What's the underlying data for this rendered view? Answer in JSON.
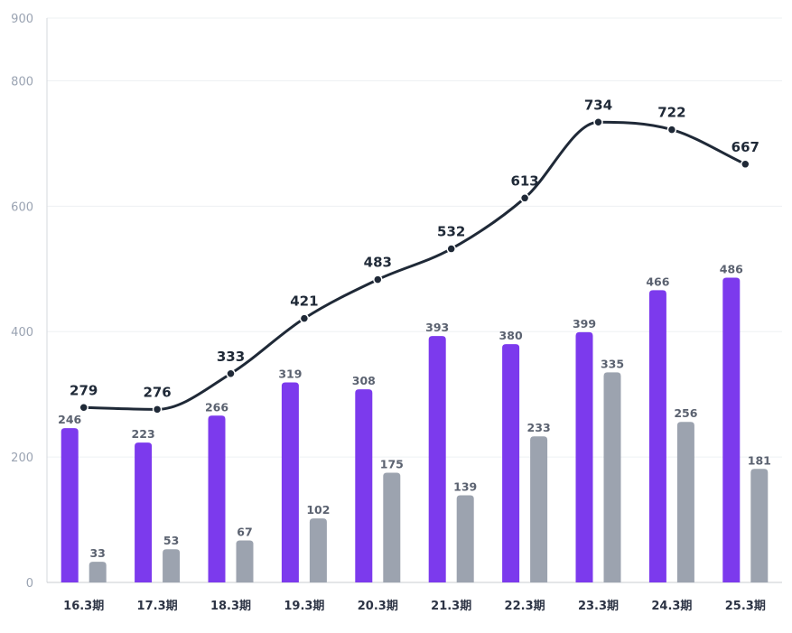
{
  "chart_data": {
    "type": "bar",
    "title": "",
    "xlabel": "",
    "ylabel": "",
    "ylim": [
      0,
      900
    ],
    "yticks": [
      0,
      200,
      400,
      600,
      800,
      900
    ],
    "grid": true,
    "legend": "none",
    "categories": [
      "16.3期",
      "17.3期",
      "18.3期",
      "19.3期",
      "20.3期",
      "21.3期",
      "22.3期",
      "23.3期",
      "24.3期",
      "25.3期"
    ],
    "series": [
      {
        "name": "series-purple",
        "type": "bar",
        "color": "#7c3aed",
        "values": [
          246,
          223,
          266,
          319,
          308,
          393,
          380,
          399,
          466,
          486
        ]
      },
      {
        "name": "series-gray",
        "type": "bar",
        "color": "#9ca3af",
        "values": [
          33,
          53,
          67,
          102,
          175,
          139,
          233,
          335,
          256,
          181
        ]
      },
      {
        "name": "series-total",
        "type": "line",
        "color": "#1f2937",
        "values": [
          279,
          276,
          333,
          421,
          483,
          532,
          613,
          734,
          722,
          667
        ]
      }
    ]
  }
}
